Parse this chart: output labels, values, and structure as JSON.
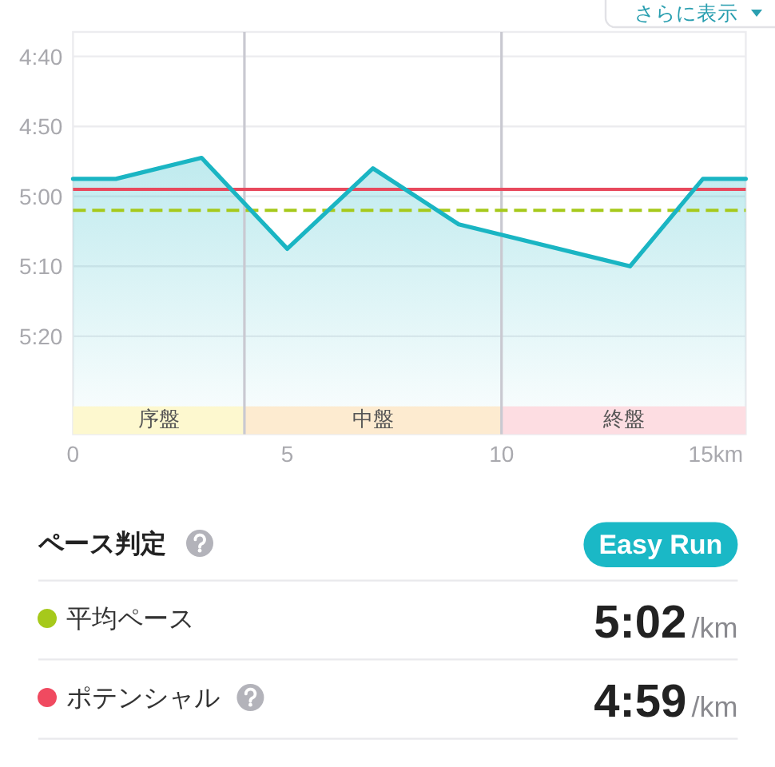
{
  "chart_data": [
    {
      "type": "line",
      "x": [
        0,
        1,
        3,
        5,
        7,
        9,
        13,
        14.7,
        15.7
      ],
      "series": [
        {
          "color": "#1ab5c3",
          "values": [
            297.5,
            297.5,
            294.5,
            307.5,
            296,
            304,
            310,
            297.5,
            297.5
          ],
          "upper": [
            297.5,
            297.5,
            294.5,
            307.5,
            296,
            304,
            310,
            297.5,
            297.5
          ],
          "lower": [
            334,
            334,
            334,
            334,
            334,
            334,
            334,
            334,
            334
          ]
        }
      ],
      "xlim": [
        0,
        15.7
      ],
      "ylim": [
        334,
        276.5
      ],
      "xticks": [
        0,
        5,
        10,
        {
          "value": 15,
          "label": "15km"
        }
      ],
      "yticks": [
        {
          "value": 280,
          "label": "4:40"
        },
        {
          "value": 290,
          "label": "4:50"
        },
        {
          "value": 300,
          "label": "5:00"
        },
        {
          "value": 310,
          "label": "5:10"
        },
        {
          "value": 320,
          "label": "5:20"
        }
      ],
      "grid": "y",
      "ref_lines": [
        {
          "axis": "x",
          "value": 4,
          "color": "#c9c9d1"
        },
        {
          "axis": "x",
          "value": 10,
          "color": "#c9c9d1"
        },
        {
          "axis": "y",
          "value": 299,
          "color": "#e8495d"
        },
        {
          "axis": "y",
          "value": 302,
          "color": "#a6c91b",
          "line_style": "dashed"
        }
      ],
      "bands": [
        {
          "axis": "x",
          "from": 0,
          "to": 4,
          "label": "序盤",
          "color": "#fdf8cf"
        },
        {
          "axis": "x",
          "from": 4,
          "to": 10,
          "label": "中盤",
          "color": "#fdebd0"
        },
        {
          "axis": "x",
          "from": 10,
          "to": 15.7,
          "label": "終盤",
          "color": "#fddde2"
        }
      ],
      "annotations": [
        "さらに表示"
      ]
    },
    {
      "type": "other",
      "title": "ペース判定",
      "annotations": [
        "Easy Run",
        "平均ペース",
        "5:02",
        "/km",
        "ポテンシャル",
        "4:59",
        "/km"
      ],
      "colors": [
        "#a6c91b",
        "#f04a60"
      ]
    }
  ]
}
